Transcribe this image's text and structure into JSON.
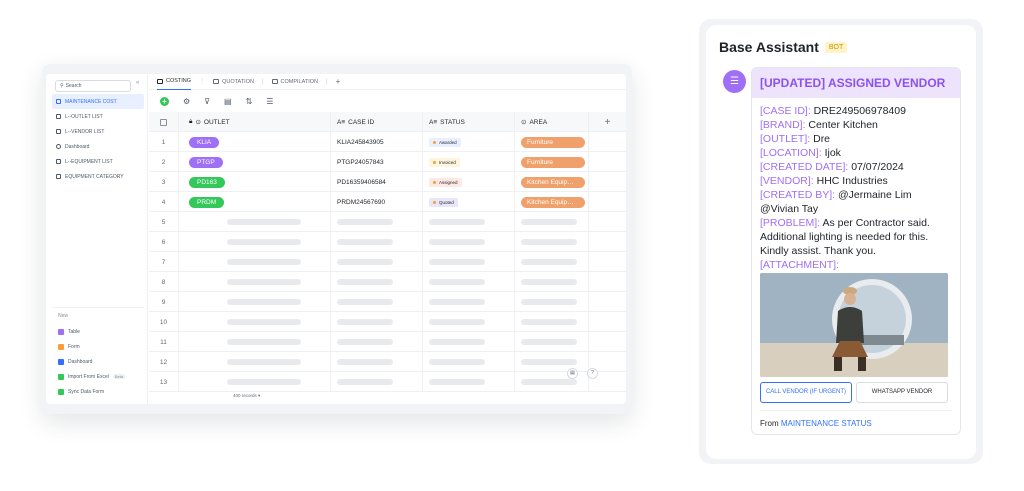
{
  "sidebar": {
    "search_placeholder": "Search",
    "collapse": "«",
    "items": [
      {
        "label": "MAINTENANCE COST",
        "active": true
      },
      {
        "label": "L--OUTLET LIST"
      },
      {
        "label": "L--VENDOR LIST"
      },
      {
        "label": "Dashboard"
      },
      {
        "label": "L--EQUIPMENT LIST"
      },
      {
        "label": "EQUIPMENT CATEGORY"
      }
    ],
    "new_label": "New",
    "new_items": [
      {
        "label": "Table",
        "color": "#9f6ff6"
      },
      {
        "label": "Form",
        "color": "#f7a03b"
      },
      {
        "label": "Dashboard",
        "color": "#3370ff"
      },
      {
        "label": "Import From Excel",
        "color": "#34c759",
        "badge": "Beta"
      },
      {
        "label": "Sync Data Form",
        "color": "#34c759"
      }
    ]
  },
  "tabs": [
    {
      "label": "COSTING",
      "active": true
    },
    {
      "label": "QUOTATION"
    },
    {
      "label": "COMPILATION"
    }
  ],
  "tab_add": "+",
  "toolbar": {
    "add": "+"
  },
  "table": {
    "headers": {
      "outlet": "OUTLET",
      "case_id": "CASE ID",
      "status": "STATUS",
      "area": "AREA",
      "add": "+"
    },
    "rows": [
      {
        "num": "1",
        "outlet": "KLIA",
        "outlet_color": "#9f6ff6",
        "case_id": "KLIA245843905",
        "status": "Awarded",
        "status_bg": "#e8efff",
        "status_dot": "#f7a03b",
        "area": "Furniture"
      },
      {
        "num": "2",
        "outlet": "PTGP",
        "outlet_color": "#9f6ff6",
        "case_id": "PTGP24057843",
        "status": "Invoiced",
        "status_bg": "#fff4dc",
        "status_dot": "#f7a03b",
        "area": "Furniture"
      },
      {
        "num": "3",
        "outlet": "PD163",
        "outlet_color": "#34c759",
        "case_id": "PD16359406584",
        "status": "Assigned",
        "status_bg": "#fde8e4",
        "status_dot": "#f7a03b",
        "area": "Kitchen Equipment"
      },
      {
        "num": "4",
        "outlet": "PRDM",
        "outlet_color": "#34c759",
        "case_id": "PRDM24567690",
        "status": "Quoted",
        "status_bg": "#e8e6f8",
        "status_dot": "#f7a03b",
        "area": "Kitchen Equipment"
      }
    ],
    "empty_rows": [
      "5",
      "6",
      "7",
      "8",
      "9",
      "10",
      "11",
      "12",
      "13"
    ],
    "records": "400 records ▾"
  },
  "assistant": {
    "title": "Base Assistant",
    "badge": "BOT",
    "message_title": "[UPDATED] ASSIGNED VENDOR",
    "fields": [
      {
        "label": "[CASE ID]:",
        "value": " DRE249506978409"
      },
      {
        "label": "[BRAND]:",
        "value": " Center Kitchen"
      },
      {
        "label": "[OUTLET]:",
        "value": " Dre"
      },
      {
        "label": "[LOCATION]:",
        "value": " Ijok"
      },
      {
        "label": "[CREATED DATE]:",
        "value": " 07/07/2024"
      },
      {
        "label": "[VENDOR]:",
        "value": " HHC Industries"
      },
      {
        "label": "[CREATED BY]:",
        "value": " @Jermaine Lim @Vivian Tay"
      },
      {
        "label": "[PROBLEM]:",
        "value": " As per Contractor said. Additional lighting is needed for this. Kindly assist. Thank you."
      },
      {
        "label": "[ATTACHMENT]:",
        "value": ""
      }
    ],
    "buttons": {
      "call": "CALL VENDOR (IF URGENT)",
      "whatsapp": "WHATSAPP VENDOR"
    },
    "footer_prefix": "From ",
    "footer_link": "MAINTENANCE STATUS"
  }
}
